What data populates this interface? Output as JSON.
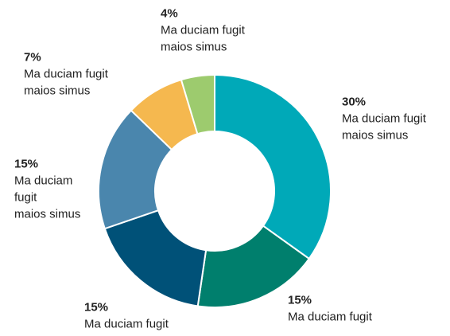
{
  "chart_data": {
    "type": "donut",
    "values": [
      30,
      15,
      15,
      15,
      7,
      4
    ],
    "value_labels": [
      "30%",
      "15%",
      "15%",
      "15%",
      "7%",
      "4%"
    ],
    "categories": [
      [
        "Ma duciam fugit",
        "maios simus"
      ],
      [
        "Ma duciam fugit"
      ],
      [
        "Ma duciam fugit"
      ],
      [
        "Ma duciam",
        "fugit",
        "maios simus"
      ],
      [
        "Ma duciam fugit",
        "maios simus"
      ],
      [
        "Ma duciam fugit",
        "maios simus"
      ]
    ],
    "colors": [
      "#00a9b8",
      "#007f6d",
      "#005178",
      "#4a86ad",
      "#f5b84f",
      "#9dcb6e"
    ]
  }
}
